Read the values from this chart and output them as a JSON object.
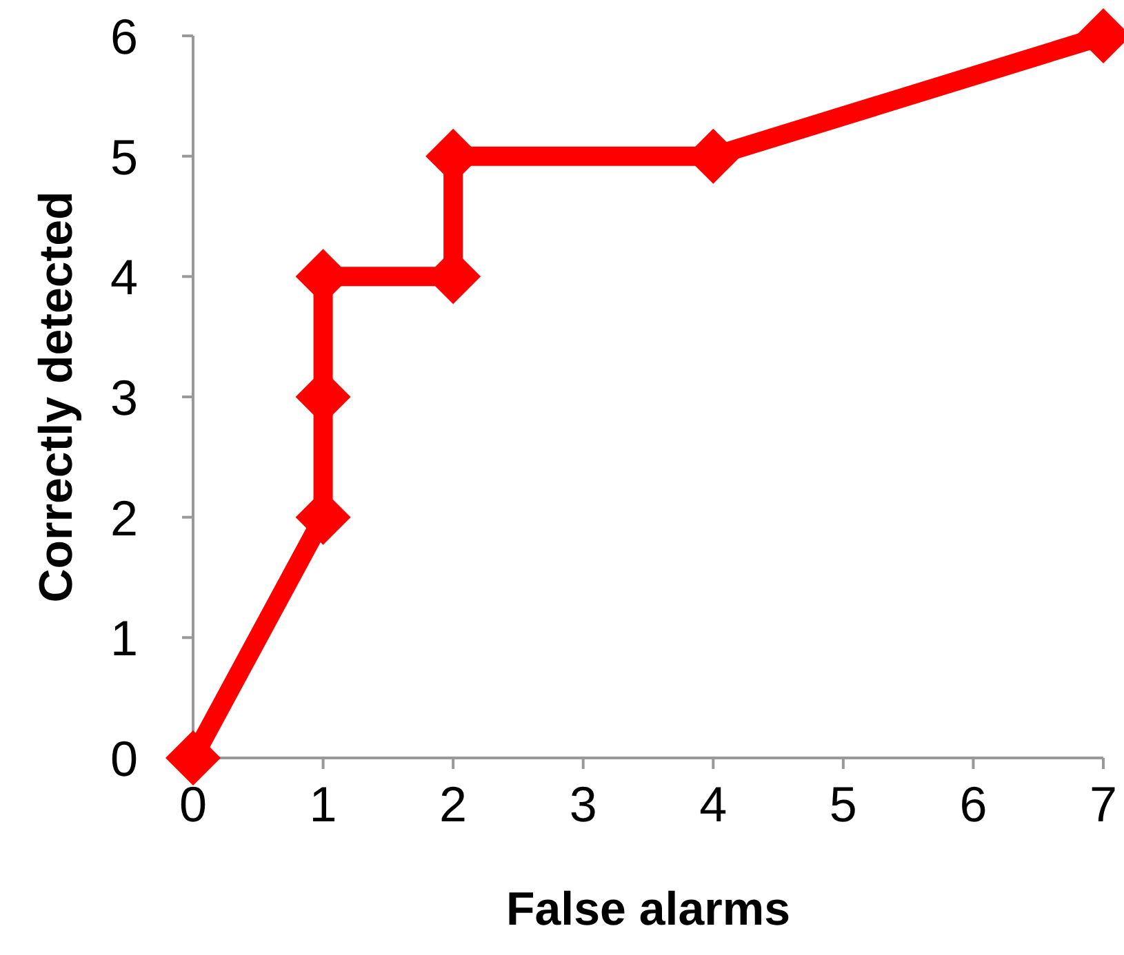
{
  "chart_data": {
    "type": "line",
    "xlabel": "False alarms",
    "ylabel": "Correctly detected",
    "x": [
      0,
      1,
      1,
      1,
      2,
      2,
      4,
      7
    ],
    "series": [
      {
        "color": "#ff0000",
        "values": [
          0,
          2,
          3,
          4,
          4,
          5,
          5,
          6
        ]
      }
    ],
    "xlim": [
      0,
      7
    ],
    "ylim": [
      0,
      6
    ],
    "xticks": [
      0,
      1,
      2,
      3,
      4,
      5,
      6,
      7
    ],
    "yticks": [
      0,
      1,
      2,
      3,
      4,
      5,
      6
    ],
    "grid": false,
    "marker": "diamond",
    "line_style": "solid"
  }
}
